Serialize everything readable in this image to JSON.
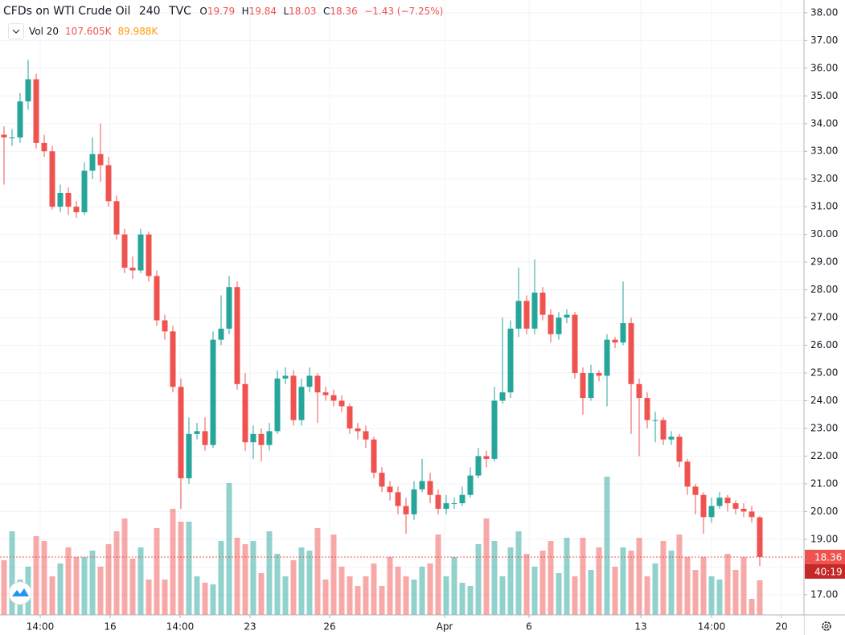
{
  "chart_data": {
    "type": "candlestick",
    "title": "CFDs on WTI Crude Oil",
    "interval": "240",
    "source": "TVC",
    "ohlc_labels": [
      "O",
      "H",
      "L",
      "C"
    ],
    "change": "−1.43 (−7.25%)",
    "volume_label": "Vol 20",
    "volume_value": "107.605K",
    "volume_ma": "89.988K",
    "countdown": "40:19",
    "up_color": "#26a69a",
    "down_color": "#ef5350",
    "grid": true,
    "xlim": [
      -0.5,
      99.5
    ],
    "xticks": [
      {
        "value": 4.5,
        "label": "14:00"
      },
      {
        "value": 13.2,
        "label": "16"
      },
      {
        "value": 21.9,
        "label": "14:00"
      },
      {
        "value": 30.6,
        "label": "23"
      },
      {
        "value": 40.5,
        "label": "26"
      },
      {
        "value": 54.8,
        "label": "Apr"
      },
      {
        "value": 65.3,
        "label": "6"
      },
      {
        "value": 79.2,
        "label": "13"
      },
      {
        "value": 88,
        "label": "14:00"
      },
      {
        "value": 96.7,
        "label": "20"
      }
    ],
    "ylim": [
      16.27,
      38.46
    ],
    "yticks": [
      {
        "value": 17,
        "label": "17.00"
      },
      {
        "value": 18,
        "label": "18.00"
      },
      {
        "value": 19,
        "label": "19.00"
      },
      {
        "value": 20,
        "label": "20.00"
      },
      {
        "value": 21,
        "label": "21.00"
      },
      {
        "value": 22,
        "label": "22.00"
      },
      {
        "value": 23,
        "label": "23.00"
      },
      {
        "value": 24,
        "label": "24.00"
      },
      {
        "value": 25,
        "label": "25.00"
      },
      {
        "value": 26,
        "label": "26.00"
      },
      {
        "value": 27,
        "label": "27.00"
      },
      {
        "value": 28,
        "label": "28.00"
      },
      {
        "value": 29,
        "label": "29.00"
      },
      {
        "value": 30,
        "label": "30.00"
      },
      {
        "value": 31,
        "label": "31.00"
      },
      {
        "value": 32,
        "label": "32.00"
      },
      {
        "value": 33,
        "label": "33.00"
      },
      {
        "value": 34,
        "label": "34.00"
      },
      {
        "value": 35,
        "label": "35.00"
      },
      {
        "value": 36,
        "label": "36.00"
      },
      {
        "value": 37,
        "label": "37.00"
      },
      {
        "value": 38,
        "label": "38.00"
      }
    ],
    "volume_lim": [
      0,
      500
    ],
    "open": [
      33.6,
      33.5,
      33.5,
      34.8,
      35.6,
      33.3,
      33.0,
      31.0,
      31.5,
      31.0,
      30.8,
      32.3,
      32.9,
      32.5,
      31.2,
      30.0,
      28.8,
      28.7,
      30.0,
      28.5,
      26.9,
      26.5,
      24.5,
      21.2,
      22.8,
      22.9,
      22.4,
      26.2,
      26.6,
      28.1,
      24.6,
      22.5,
      22.8,
      22.4,
      22.9,
      24.8,
      24.9,
      23.3,
      24.5,
      24.9,
      24.3,
      24.2,
      24.0,
      23.8,
      23.0,
      22.9,
      22.6,
      21.4,
      20.9,
      20.7,
      20.2,
      19.9,
      20.8,
      21.1,
      20.6,
      20.1,
      20.3,
      20.3,
      20.6,
      21.3,
      22.0,
      21.9,
      24.0,
      24.3,
      26.6,
      27.6,
      26.6,
      27.9,
      27.1,
      26.4,
      27.0,
      27.1,
      25.0,
      24.1,
      25.0,
      24.9,
      26.2,
      26.1,
      26.8,
      24.6,
      24.1,
      23.3,
      23.3,
      22.6,
      22.7,
      21.8,
      20.9,
      20.6,
      19.8,
      20.2,
      20.5,
      20.3,
      20.1,
      20.0,
      19.79
    ],
    "high": [
      33.9,
      33.8,
      35.1,
      36.3,
      35.8,
      33.6,
      33.2,
      31.8,
      31.7,
      31.2,
      32.6,
      33.5,
      34.0,
      32.8,
      31.4,
      30.2,
      29.2,
      30.2,
      30.1,
      28.7,
      27.1,
      26.7,
      24.8,
      23.4,
      23.2,
      23.4,
      26.5,
      27.8,
      28.5,
      28.3,
      25.0,
      23.1,
      23.0,
      23.2,
      25.1,
      25.2,
      25.1,
      24.8,
      25.2,
      25.0,
      24.5,
      24.4,
      24.2,
      23.9,
      23.2,
      23.1,
      22.7,
      21.6,
      21.1,
      20.9,
      20.5,
      21.1,
      21.9,
      21.4,
      20.8,
      20.6,
      20.5,
      20.9,
      21.6,
      22.3,
      22.2,
      24.5,
      27.0,
      26.9,
      28.8,
      27.8,
      29.1,
      28.1,
      27.3,
      27.2,
      27.3,
      27.2,
      25.2,
      25.3,
      25.1,
      26.4,
      26.3,
      28.3,
      27.0,
      24.8,
      24.3,
      23.6,
      23.4,
      22.9,
      22.8,
      21.9,
      21.0,
      20.7,
      20.5,
      20.7,
      20.6,
      20.4,
      20.3,
      20.2,
      19.84
    ],
    "low": [
      31.8,
      33.2,
      33.3,
      34.5,
      33.1,
      32.8,
      30.9,
      30.8,
      30.7,
      30.6,
      30.7,
      32.0,
      31.9,
      31.0,
      29.8,
      28.6,
      28.4,
      28.6,
      28.3,
      26.7,
      26.2,
      24.3,
      20.1,
      21.0,
      22.6,
      22.2,
      22.3,
      26.0,
      26.4,
      24.4,
      22.2,
      21.9,
      21.8,
      22.2,
      22.8,
      24.6,
      23.1,
      23.1,
      24.3,
      23.2,
      24.0,
      23.8,
      23.6,
      22.8,
      22.6,
      22.3,
      21.2,
      20.7,
      20.4,
      19.9,
      19.2,
      19.7,
      20.7,
      20.3,
      19.9,
      19.9,
      20.1,
      20.2,
      20.5,
      21.2,
      21.6,
      21.8,
      23.9,
      24.1,
      26.3,
      26.4,
      26.4,
      26.9,
      26.1,
      26.2,
      26.8,
      24.8,
      23.5,
      24.0,
      24.7,
      23.8,
      25.9,
      26.0,
      22.8,
      22.0,
      23.0,
      22.5,
      22.4,
      22.4,
      21.6,
      20.6,
      19.9,
      19.2,
      19.6,
      20.1,
      20.0,
      19.9,
      19.8,
      19.6,
      18.03
    ],
    "close": [
      33.5,
      33.5,
      34.8,
      35.6,
      33.3,
      33.0,
      31.0,
      31.5,
      31.0,
      30.8,
      32.3,
      32.9,
      32.5,
      31.2,
      30.0,
      28.8,
      28.7,
      30.0,
      28.5,
      26.9,
      26.5,
      24.5,
      21.2,
      22.8,
      22.9,
      22.4,
      26.2,
      26.6,
      28.1,
      24.6,
      22.5,
      22.8,
      22.4,
      22.9,
      24.8,
      24.9,
      23.3,
      24.5,
      24.9,
      24.3,
      24.2,
      24.0,
      23.8,
      23.0,
      22.9,
      22.6,
      21.4,
      20.9,
      20.7,
      20.2,
      19.9,
      20.8,
      21.1,
      20.6,
      20.1,
      20.3,
      20.3,
      20.6,
      21.3,
      22.0,
      21.9,
      24.0,
      24.3,
      26.6,
      27.6,
      26.6,
      27.9,
      27.1,
      26.4,
      27.0,
      27.1,
      25.0,
      24.1,
      25.0,
      24.9,
      26.2,
      26.1,
      26.8,
      24.6,
      24.1,
      23.3,
      23.3,
      22.6,
      22.7,
      21.8,
      20.9,
      20.6,
      19.8,
      20.2,
      20.5,
      20.3,
      20.1,
      20.0,
      19.8,
      18.36
    ],
    "volume": [
      170,
      260,
      110,
      150,
      245,
      230,
      120,
      160,
      210,
      180,
      180,
      200,
      150,
      220,
      260,
      300,
      175,
      210,
      110,
      270,
      110,
      330,
      290,
      290,
      120,
      100,
      95,
      230,
      410,
      240,
      220,
      230,
      130,
      260,
      190,
      120,
      170,
      210,
      200,
      270,
      110,
      250,
      150,
      120,
      90,
      120,
      160,
      90,
      180,
      150,
      120,
      110,
      150,
      160,
      250,
      120,
      180,
      100,
      90,
      220,
      300,
      230,
      120,
      210,
      260,
      190,
      150,
      200,
      230,
      130,
      240,
      120,
      240,
      140,
      210,
      430,
      150,
      210,
      200,
      240,
      120,
      160,
      230,
      200,
      250,
      180,
      140,
      180,
      120,
      110,
      190,
      140,
      180,
      50,
      107.605
    ]
  }
}
